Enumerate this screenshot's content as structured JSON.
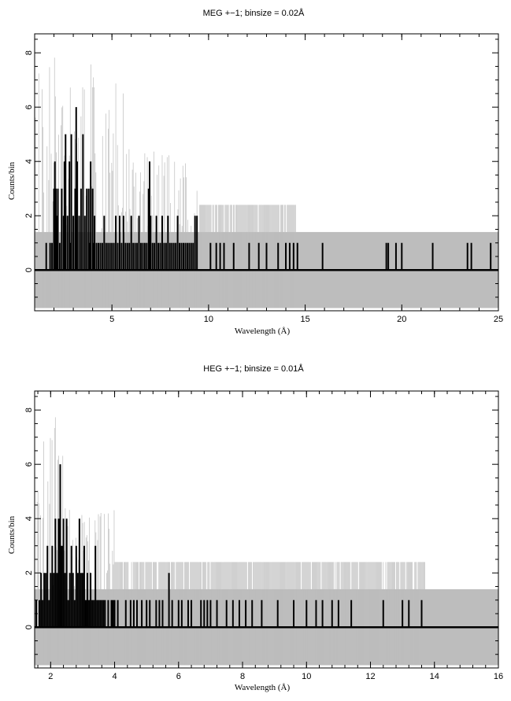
{
  "chart_data": [
    {
      "type": "bar",
      "title": "MEG +−1; binsize = 0.02Å",
      "xlabel": "Wavelength (Å)",
      "ylabel": "Counts/bin",
      "xlim": [
        1.0,
        25.0
      ],
      "ylim": [
        -1.5,
        8.7
      ],
      "xticks": [
        5,
        10,
        15,
        20,
        25
      ],
      "yticks": [
        0,
        2,
        4,
        6,
        8
      ],
      "error_band": [
        -1.4,
        1.4
      ],
      "error_band_end": 9.5,
      "grey_extend": 14.5,
      "colors": {
        "counts": "#000000",
        "errors": "#bdbdbd"
      },
      "series": [
        {
          "x": [
            1.6,
            1.7,
            1.8,
            1.9,
            2.0,
            2.05,
            2.1,
            2.15,
            2.2,
            2.3,
            2.4,
            2.5,
            2.55,
            2.6,
            2.7,
            2.8,
            2.85,
            2.9,
            3.0,
            3.1,
            3.15,
            3.2,
            3.3,
            3.4,
            3.5,
            3.6,
            3.7,
            3.8,
            3.85,
            3.9,
            4.0,
            4.05,
            4.1,
            4.2,
            4.3,
            4.4,
            4.5,
            4.6,
            4.7,
            4.8,
            4.9,
            5.0,
            5.1,
            5.2,
            5.3,
            5.4,
            5.5,
            5.6,
            5.7,
            5.8,
            5.9,
            6.0,
            6.1,
            6.2,
            6.3,
            6.4,
            6.5,
            6.6,
            6.7,
            6.8,
            6.9,
            6.95,
            7.0,
            7.1,
            7.2,
            7.3,
            7.4,
            7.5,
            7.6,
            7.7,
            7.8,
            7.9,
            8.0,
            8.1,
            8.2,
            8.3,
            8.4,
            8.5,
            8.6,
            8.7,
            8.8,
            8.9,
            9.0,
            9.1,
            9.2,
            9.3,
            9.4,
            10.1,
            10.4,
            10.6,
            10.8,
            11.3,
            12.1,
            12.6,
            13.0,
            13.6,
            14.0,
            14.2,
            14.4,
            14.6,
            15.9,
            19.2,
            19.3,
            19.7,
            20.0,
            21.6,
            23.4,
            23.6,
            24.6
          ],
          "values": [
            1,
            0,
            1,
            1,
            3,
            4,
            3,
            2,
            3,
            1,
            3,
            2,
            4,
            5,
            2,
            4,
            1,
            5,
            2,
            3,
            6,
            4,
            2,
            3,
            5,
            2,
            3,
            3,
            1,
            4,
            3,
            1,
            2,
            1,
            1,
            1,
            1,
            2,
            1,
            1,
            1,
            1,
            1,
            2,
            1,
            2,
            1,
            2,
            1,
            1,
            1,
            2,
            1,
            1,
            1,
            2,
            1,
            1,
            1,
            1,
            3,
            4,
            2,
            1,
            1,
            2,
            1,
            1,
            2,
            1,
            1,
            2,
            1,
            1,
            1,
            1,
            2,
            1,
            1,
            1,
            1,
            1,
            1,
            1,
            1,
            2,
            2,
            1,
            1,
            1,
            1,
            1,
            1,
            1,
            1,
            1,
            1,
            1,
            1,
            1,
            1,
            1,
            1,
            1,
            1,
            1,
            1,
            1,
            1
          ]
        }
      ]
    },
    {
      "type": "bar",
      "title": "HEG +−1; binsize = 0.01Å",
      "xlabel": "Wavelength (Å)",
      "ylabel": "Counts/bin",
      "xlim": [
        1.5,
        16.0
      ],
      "ylim": [
        -1.5,
        8.7
      ],
      "xticks": [
        2,
        4,
        6,
        8,
        10,
        12,
        14,
        16
      ],
      "yticks": [
        0,
        2,
        4,
        6,
        8
      ],
      "error_band": [
        -1.4,
        1.4
      ],
      "error_band_end": 4.0,
      "grey_extend": 13.7,
      "colors": {
        "counts": "#000000",
        "errors": "#bdbdbd"
      },
      "series": [
        {
          "x": [
            1.55,
            1.6,
            1.65,
            1.7,
            1.75,
            1.8,
            1.85,
            1.9,
            1.95,
            2.0,
            2.05,
            2.1,
            2.15,
            2.2,
            2.25,
            2.3,
            2.35,
            2.4,
            2.45,
            2.5,
            2.55,
            2.6,
            2.65,
            2.7,
            2.75,
            2.8,
            2.85,
            2.9,
            2.95,
            3.0,
            3.05,
            3.1,
            3.15,
            3.2,
            3.25,
            3.3,
            3.35,
            3.4,
            3.45,
            3.5,
            3.55,
            3.6,
            3.65,
            3.7,
            3.8,
            3.9,
            3.95,
            4.0,
            4.1,
            4.35,
            4.5,
            4.6,
            4.7,
            4.85,
            5.0,
            5.1,
            5.3,
            5.4,
            5.5,
            5.7,
            5.8,
            6.0,
            6.1,
            6.3,
            6.4,
            6.7,
            6.8,
            6.9,
            7.0,
            7.2,
            7.5,
            7.7,
            7.9,
            8.1,
            8.3,
            8.6,
            9.1,
            9.6,
            10.0,
            10.3,
            10.5,
            10.8,
            11.0,
            11.4,
            12.4,
            13.0,
            13.2,
            13.6
          ],
          "values": [
            1,
            0,
            1,
            2,
            1,
            2,
            2,
            3,
            1,
            2,
            3,
            2,
            4,
            2,
            4,
            6,
            3,
            4,
            2,
            4,
            1,
            2,
            3,
            2,
            1,
            3,
            2,
            4,
            2,
            2,
            3,
            1,
            2,
            1,
            2,
            1,
            1,
            3,
            1,
            1,
            1,
            1,
            1,
            1,
            1,
            1,
            1,
            1,
            1,
            1,
            1,
            1,
            1,
            1,
            1,
            1,
            1,
            1,
            1,
            2,
            1,
            1,
            1,
            1,
            1,
            1,
            1,
            1,
            1,
            1,
            1,
            1,
            1,
            1,
            1,
            1,
            1,
            1,
            1,
            1,
            1,
            1,
            1,
            1,
            1,
            1,
            1,
            1
          ]
        }
      ]
    }
  ]
}
